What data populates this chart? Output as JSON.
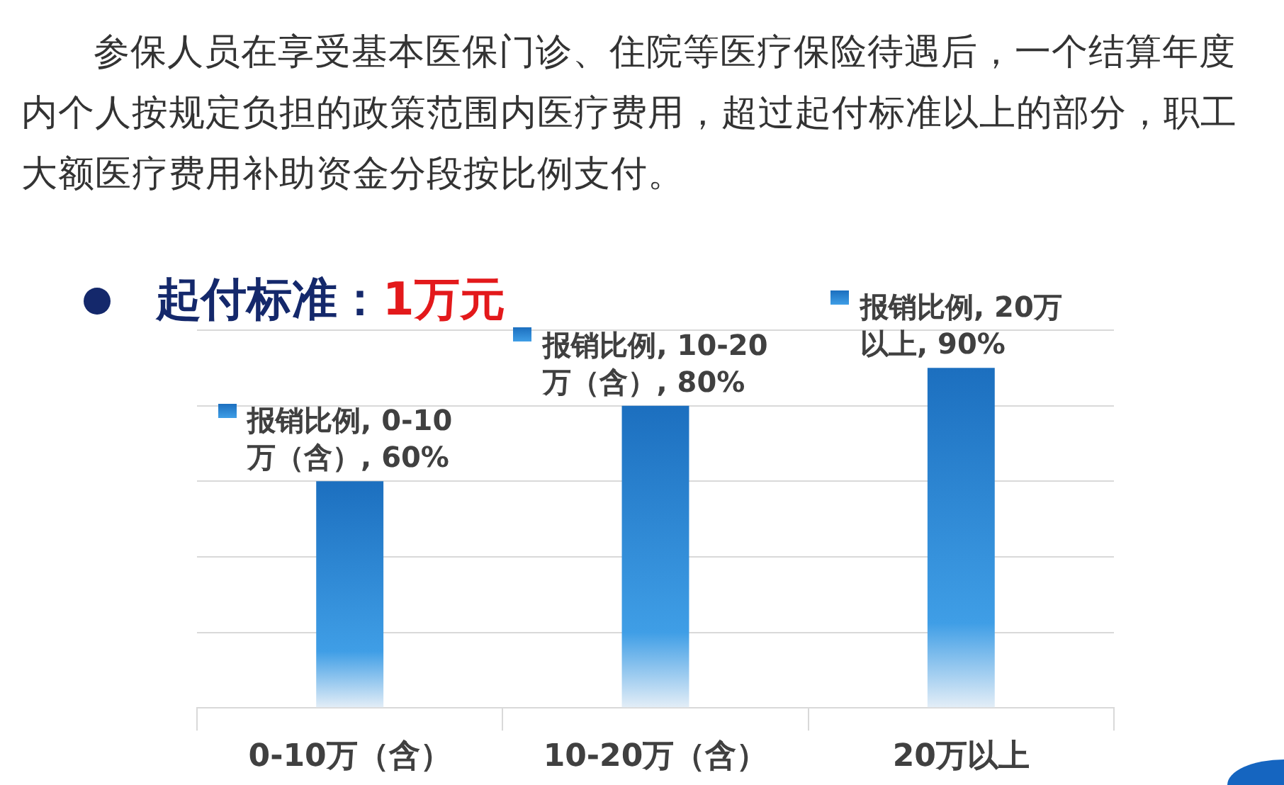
{
  "chart_data": {
    "type": "bar",
    "title": "起付标准：1万元",
    "annotations": [
      "参保人员在享受基本医保门诊、住院等医疗保险待遇后，一个结算年度内个人按规定负担的政策范围内医疗费用，超过起付标准以上的部分，职工大额医疗费用补助资金分段按比例支付。"
    ],
    "categories": [
      "0-10万（含）",
      "10-20万（含）",
      "20万以上"
    ],
    "values": [
      60,
      80,
      90
    ],
    "color": "#1c6fbf",
    "value_labels": [
      "报销比例, 0-10万（含）, 60%",
      "报销比例, 10-20万（含）, 80%",
      "报销比例, 20万以上, 90%"
    ],
    "ylim": [
      0,
      100
    ],
    "yticks": [
      {
        "value": 0,
        "label": null
      },
      {
        "value": 20,
        "label": null
      },
      {
        "value": 40,
        "label": null
      },
      {
        "value": 60,
        "label": null
      },
      {
        "value": 80,
        "label": null
      },
      {
        "value": 100,
        "label": null
      }
    ],
    "grid": "y",
    "tick_labels": "x"
  }
}
